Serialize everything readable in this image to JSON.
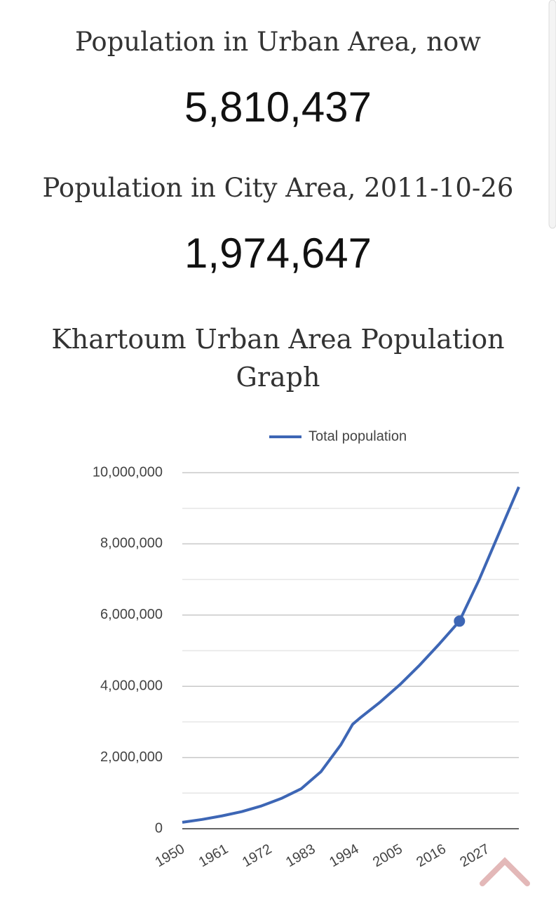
{
  "header": {
    "urban_label": "Population in Urban Area, now",
    "urban_value": "5,810,437",
    "city_label": "Population in City Area, 2011-10-26",
    "city_value": "1,974,647"
  },
  "chart_data": {
    "type": "line",
    "title": "Khartoum Urban Area Population Graph",
    "x": [
      1950,
      1955,
      1960,
      1965,
      1970,
      1975,
      1980,
      1985,
      1990,
      1993,
      1995,
      2000,
      2005,
      2010,
      2015,
      2020,
      2025,
      2030,
      2035
    ],
    "series": [
      {
        "name": "Total population",
        "color": "#3d66b5",
        "values": [
          180000,
          260000,
          360000,
          480000,
          640000,
          850000,
          1120000,
          1600000,
          2350000,
          2930000,
          3120000,
          3560000,
          4050000,
          4600000,
          5200000,
          5830000,
          7000000,
          8300000,
          9600000
        ]
      }
    ],
    "highlight_x": 2020,
    "xlim": [
      1950,
      2035
    ],
    "xticks": [
      1950,
      1961,
      1972,
      1983,
      1994,
      2005,
      2016,
      2027
    ],
    "ylim": [
      0,
      10000000
    ],
    "yticks": [
      0,
      {
        "value": 2000000,
        "label": "2,000,000"
      },
      {
        "value": 4000000,
        "label": "4,000,000"
      },
      {
        "value": 6000000,
        "label": "6,000,000"
      },
      {
        "value": 8000000,
        "label": "8,000,000"
      },
      {
        "value": 10000000,
        "label": "10,000,000"
      }
    ],
    "minor_yticks": [
      1000000,
      3000000,
      5000000,
      7000000,
      9000000
    ],
    "grid": true,
    "legend": "top"
  }
}
